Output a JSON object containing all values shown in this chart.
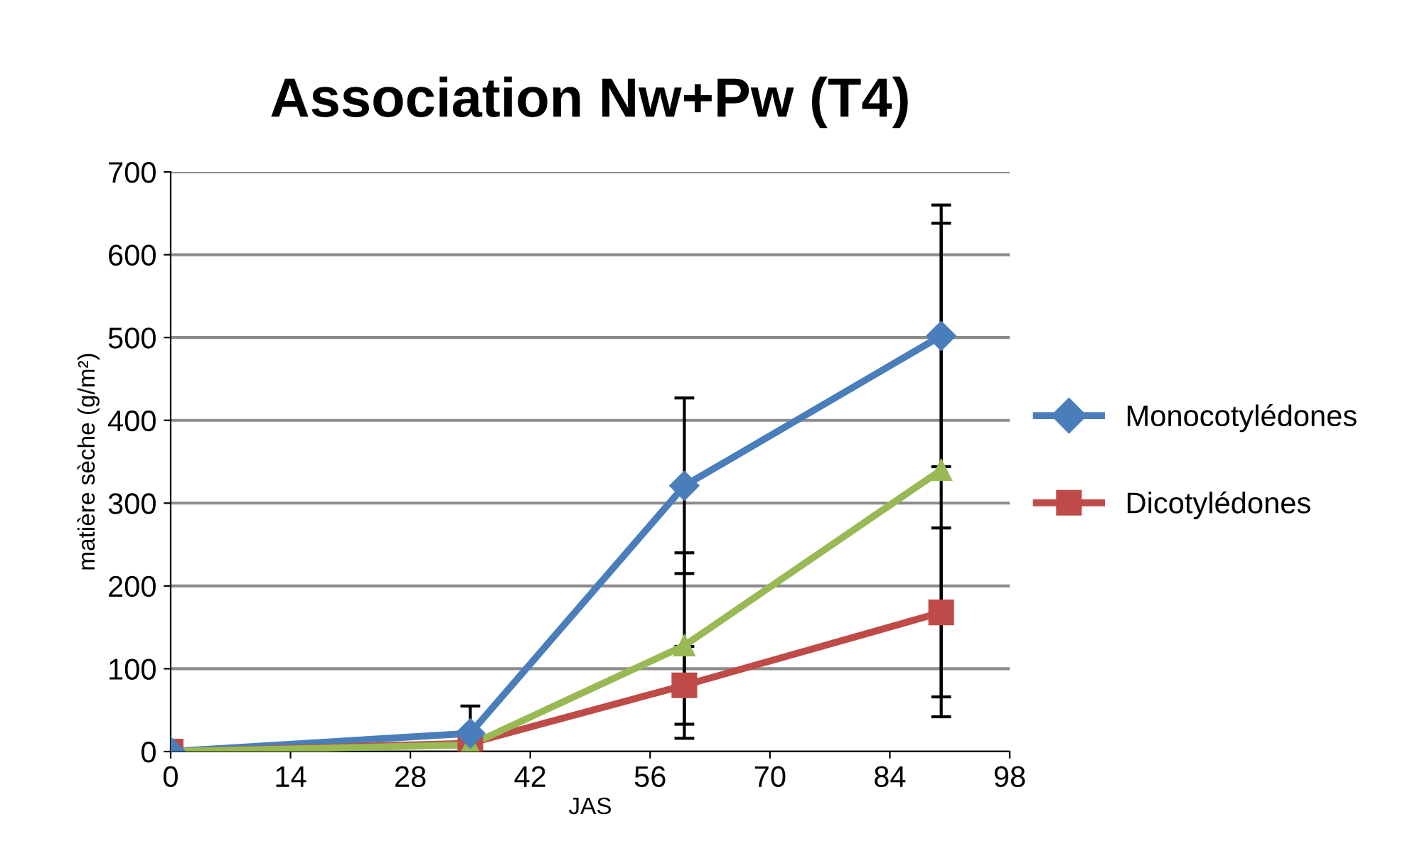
{
  "chart_data": {
    "type": "line",
    "title": "Association Nw+Pw (T4)",
    "xlabel": "JAS",
    "ylabel": "matière sèche (g/m²)",
    "x": [
      0,
      35,
      60,
      90
    ],
    "series": [
      {
        "name": "Monocotylédones",
        "color": "#4a7ebb",
        "marker": "diamond",
        "values": [
          0,
          22,
          321,
          502
        ],
        "errors": [
          null,
          33,
          106,
          158
        ]
      },
      {
        "name": "Dicotylédones",
        "color": "#be4b48",
        "marker": "square",
        "values": [
          0,
          10,
          80,
          168
        ],
        "errors": [
          null,
          null,
          47,
          102
        ]
      },
      {
        "color": "#98b954",
        "marker": "triangle",
        "values": [
          0,
          8,
          128,
          340
        ],
        "errors": [
          null,
          null,
          112,
          298
        ]
      }
    ],
    "xlim": [
      0,
      98
    ],
    "xticks": [
      0,
      14,
      28,
      42,
      56,
      70,
      84,
      98
    ],
    "ylim": [
      0,
      700
    ],
    "yticks": [
      0,
      100,
      200,
      300,
      400,
      500,
      600,
      700
    ],
    "grid": "y",
    "legend": "right"
  }
}
